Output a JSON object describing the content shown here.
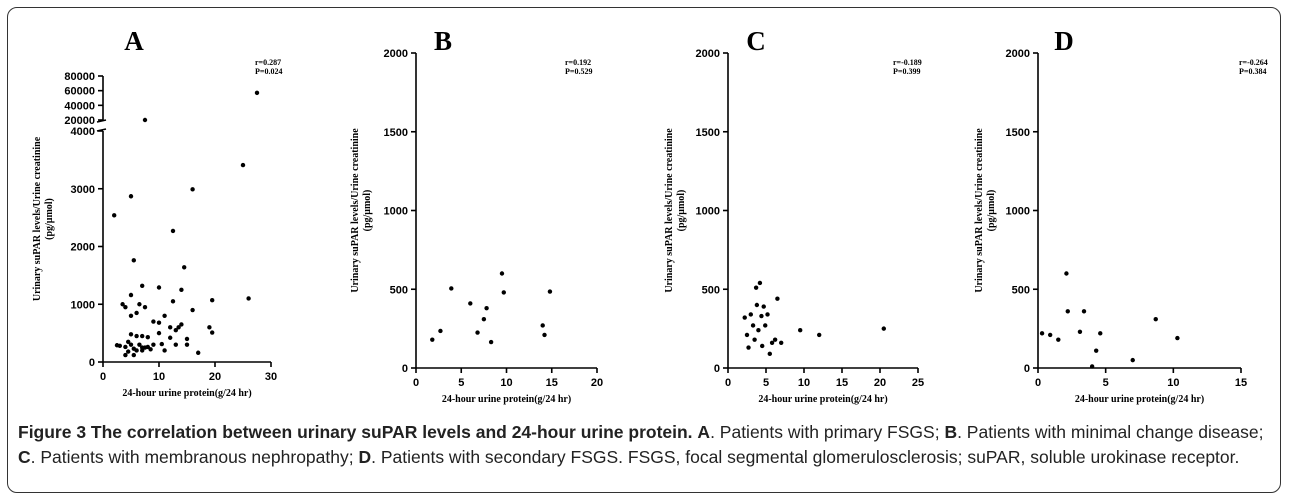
{
  "chart_data": [
    {
      "type": "scatter",
      "panel_label": "A",
      "xlabel": "24-hour urine protein(g/24 hr)",
      "ylabel": "Urinary suPAR levels/Urine creatinine",
      "ylabel_unit": "(pg/μmol)",
      "xlim": [
        0,
        30
      ],
      "x_ticks": [
        0,
        10,
        20,
        30
      ],
      "ylim_lower": [
        0,
        4000
      ],
      "y_ticks_lower": [
        0,
        1000,
        2000,
        3000,
        4000
      ],
      "y_ticks_upper": [
        20000,
        40000,
        60000,
        80000
      ],
      "ylim_upper": [
        20000,
        80000
      ],
      "axis_break": true,
      "stats": [
        "r=0.287",
        "P=0.024"
      ],
      "points": [
        [
          2,
          2540
        ],
        [
          2.5,
          290
        ],
        [
          3,
          280
        ],
        [
          3.5,
          1000
        ],
        [
          4,
          950
        ],
        [
          4,
          260
        ],
        [
          4,
          120
        ],
        [
          4.5,
          350
        ],
        [
          4.5,
          180
        ],
        [
          5,
          2870
        ],
        [
          5,
          1160
        ],
        [
          5,
          800
        ],
        [
          5,
          480
        ],
        [
          5,
          300
        ],
        [
          5.5,
          1760
        ],
        [
          5.5,
          230
        ],
        [
          5.5,
          120
        ],
        [
          6,
          850
        ],
        [
          6,
          450
        ],
        [
          6,
          200
        ],
        [
          6.5,
          1000
        ],
        [
          6.5,
          300
        ],
        [
          7,
          1320
        ],
        [
          7,
          450
        ],
        [
          7,
          250
        ],
        [
          7,
          200
        ],
        [
          7.5,
          14000
        ],
        [
          7.5,
          950
        ],
        [
          7.5,
          250
        ],
        [
          8,
          430
        ],
        [
          8,
          260
        ],
        [
          8.5,
          220
        ],
        [
          9,
          700
        ],
        [
          9,
          300
        ],
        [
          10,
          1290
        ],
        [
          10,
          680
        ],
        [
          10,
          500
        ],
        [
          10.5,
          310
        ],
        [
          11,
          800
        ],
        [
          11,
          200
        ],
        [
          12,
          600
        ],
        [
          12,
          420
        ],
        [
          12.5,
          2270
        ],
        [
          12.5,
          1050
        ],
        [
          13,
          550
        ],
        [
          13,
          300
        ],
        [
          13.5,
          600
        ],
        [
          14,
          650
        ],
        [
          14,
          1250
        ],
        [
          14.5,
          1640
        ],
        [
          15,
          400
        ],
        [
          15,
          300
        ],
        [
          16,
          2990
        ],
        [
          16,
          900
        ],
        [
          17,
          160
        ],
        [
          19,
          600
        ],
        [
          19.5,
          1070
        ],
        [
          19.5,
          510
        ],
        [
          25,
          3410
        ],
        [
          26,
          1100
        ],
        [
          27.5,
          57000
        ]
      ]
    },
    {
      "type": "scatter",
      "panel_label": "B",
      "xlabel": "24-hour urine protein(g/24 hr)",
      "ylabel": "Urinary suPAR levels/Urine creatinine",
      "ylabel_unit": "(pg/μmol)",
      "xlim": [
        0,
        20
      ],
      "x_ticks": [
        0,
        5,
        10,
        15,
        20
      ],
      "ylim": [
        0,
        2000
      ],
      "y_ticks": [
        0,
        500,
        1000,
        1500,
        2000
      ],
      "stats": [
        "r=0.192",
        "P=0.529"
      ],
      "points": [
        [
          1.8,
          180
        ],
        [
          2.7,
          235
        ],
        [
          3.9,
          505
        ],
        [
          6,
          410
        ],
        [
          6.8,
          225
        ],
        [
          7.5,
          310
        ],
        [
          7.8,
          380
        ],
        [
          8.3,
          165
        ],
        [
          9.5,
          600
        ],
        [
          9.7,
          480
        ],
        [
          14,
          270
        ],
        [
          14.2,
          210
        ],
        [
          14.8,
          485
        ]
      ]
    },
    {
      "type": "scatter",
      "panel_label": "C",
      "xlabel": "24-hour urine protein(g/24 hr)",
      "ylabel": "Urinary suPAR levels/Urine creatinine",
      "ylabel_unit": "(pg/μmol)",
      "xlim": [
        0,
        25
      ],
      "x_ticks": [
        0,
        5,
        10,
        15,
        20,
        25
      ],
      "ylim": [
        0,
        2000
      ],
      "y_ticks": [
        0,
        500,
        1000,
        1500,
        2000
      ],
      "stats": [
        "r=-0.189",
        "P=0.399"
      ],
      "points": [
        [
          2.2,
          320
        ],
        [
          2.5,
          210
        ],
        [
          2.7,
          130
        ],
        [
          3,
          340
        ],
        [
          3.3,
          270
        ],
        [
          3.5,
          180
        ],
        [
          3.7,
          510
        ],
        [
          3.8,
          400
        ],
        [
          4,
          240
        ],
        [
          4.2,
          540
        ],
        [
          4.4,
          330
        ],
        [
          4.5,
          140
        ],
        [
          4.7,
          390
        ],
        [
          4.9,
          270
        ],
        [
          5.2,
          340
        ],
        [
          5.5,
          90
        ],
        [
          5.8,
          160
        ],
        [
          6.2,
          180
        ],
        [
          6.5,
          440
        ],
        [
          7,
          160
        ],
        [
          9.5,
          240
        ],
        [
          12,
          210
        ],
        [
          20.5,
          250
        ]
      ]
    },
    {
      "type": "scatter",
      "panel_label": "D",
      "xlabel": "24-hour urine protein(g/24 hr)",
      "ylabel": "Urinary suPAR levels/Urine creatinine",
      "ylabel_unit": "(pg/μmol)",
      "xlim": [
        0,
        15
      ],
      "x_ticks": [
        0,
        5,
        10,
        15
      ],
      "ylim": [
        0,
        2000
      ],
      "y_ticks": [
        0,
        500,
        1000,
        1500,
        2000
      ],
      "stats": [
        "r=-0.264",
        "P=0.384"
      ],
      "points": [
        [
          0.3,
          220
        ],
        [
          0.9,
          210
        ],
        [
          1.5,
          180
        ],
        [
          2.1,
          600
        ],
        [
          2.2,
          360
        ],
        [
          3.1,
          230
        ],
        [
          3.4,
          360
        ],
        [
          4,
          10
        ],
        [
          4.3,
          110
        ],
        [
          4.6,
          220
        ],
        [
          7,
          50
        ],
        [
          8.7,
          310
        ],
        [
          10.3,
          190
        ]
      ]
    }
  ],
  "caption": {
    "title": "Figure 3 The correlation between urinary suPAR levels and 24-hour urine protein.",
    "parts": [
      {
        "label": "A",
        "text": ". Patients with primary FSGS; "
      },
      {
        "label": "B",
        "text": ". Patients with minimal change disease; "
      },
      {
        "label": "C",
        "text": ". Patients with membranous nephropathy; "
      },
      {
        "label": "D",
        "text": ". Patients with secondary FSGS. FSGS, focal segmental glomerulosclerosis; suPAR, soluble urokinase receptor."
      }
    ]
  }
}
